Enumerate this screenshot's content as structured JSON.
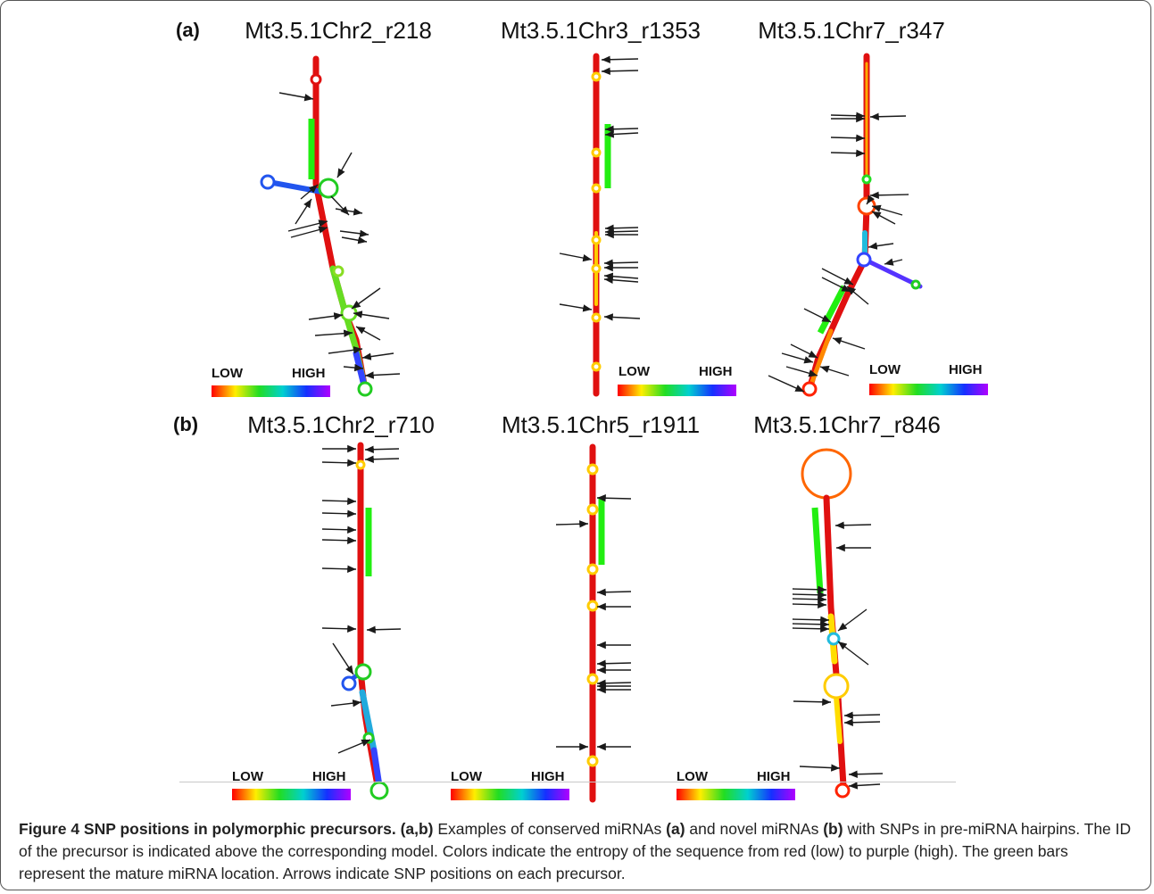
{
  "panels": [
    {
      "label": "(a)",
      "precursors": [
        {
          "title": "Mt3.5.1Chr2_r218",
          "scale_low": "LOW",
          "scale_high": "HIGH"
        },
        {
          "title": "Mt3.5.1Chr3_r1353",
          "scale_low": "LOW",
          "scale_high": "HIGH"
        },
        {
          "title": "Mt3.5.1Chr7_r347",
          "scale_low": "LOW",
          "scale_high": "HIGH"
        }
      ]
    },
    {
      "label": "(b)",
      "precursors": [
        {
          "title": "Mt3.5.1Chr2_r710",
          "scale_low": "LOW",
          "scale_high": "HIGH"
        },
        {
          "title": "Mt3.5.1Chr5_r1911",
          "scale_low": "LOW",
          "scale_high": "HIGH"
        },
        {
          "title": "Mt3.5.1Chr7_r846",
          "scale_low": "LOW",
          "scale_high": "HIGH"
        }
      ]
    }
  ],
  "caption": {
    "figure_label": "Figure 4 SNP positions in polymorphic precursors.",
    "panels_ref": "(a,b)",
    "text_1": " Examples of conserved miRNAs ",
    "ref_a": "(a)",
    "text_2": " and novel miRNAs ",
    "ref_b": "(b)",
    "text_3": " with SNPs in pre-miRNA hairpins. The ID of the precursor is indicated above the corresponding model. Colors indicate the entropy of the sequence from red (low) to purple (high). The green bars represent the mature miRNA location. Arrows indicate SNP positions on each precursor."
  },
  "colors": {
    "stem": "#e01010",
    "mature_bar": "#22ee11",
    "arrow": "#1a1a1a",
    "gradient": [
      "#ff0000",
      "#ffee00",
      "#22dd22",
      "#00d0d0",
      "#1530ff",
      "#b000ff"
    ]
  }
}
